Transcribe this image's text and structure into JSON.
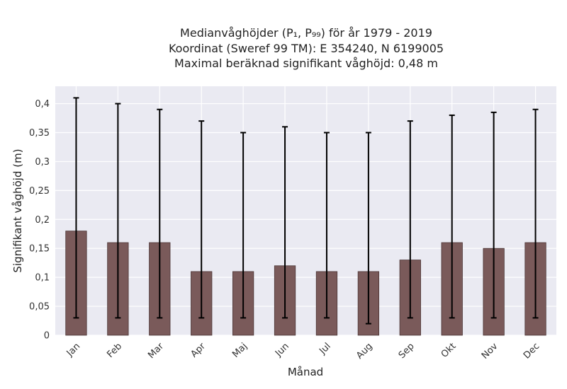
{
  "chart_data": {
    "type": "bar",
    "title": [
      "Medianvåghöjder (P₁, P₉₉) för år 1979 - 2019",
      "Koordinat (Sweref 99 TM): E 354240, N 6199005",
      "Maximal beräknad signifikant våghöjd: 0,48 m"
    ],
    "xlabel": "Månad",
    "ylabel": "Signifikant våghöjd (m)",
    "categories": [
      "Jan",
      "Feb",
      "Mar",
      "Apr",
      "Maj",
      "Jun",
      "Jul",
      "Aug",
      "Sep",
      "Okt",
      "Nov",
      "Dec"
    ],
    "values": [
      0.18,
      0.16,
      0.16,
      0.11,
      0.11,
      0.12,
      0.11,
      0.11,
      0.13,
      0.16,
      0.15,
      0.16
    ],
    "p1": [
      0.03,
      0.03,
      0.03,
      0.03,
      0.03,
      0.03,
      0.03,
      0.02,
      0.03,
      0.03,
      0.03,
      0.03
    ],
    "p99": [
      0.41,
      0.4,
      0.39,
      0.37,
      0.35,
      0.36,
      0.35,
      0.35,
      0.37,
      0.38,
      0.385,
      0.39
    ],
    "ylim": [
      0,
      0.43
    ],
    "yticks": [
      0,
      0.05,
      0.1,
      0.15,
      0.2,
      0.25,
      0.3,
      0.35,
      0.4
    ],
    "ytick_labels": [
      "0",
      "0,05",
      "0,1",
      "0,15",
      "0,2",
      "0,25",
      "0,3",
      "0,35",
      "0,4"
    ],
    "grid": true,
    "colors": {
      "bar": "#7a5a5a",
      "bar_edge": "#4a3535",
      "error": "#000000",
      "plot_bg": "#eaeaf2",
      "grid": "#ffffff"
    }
  }
}
